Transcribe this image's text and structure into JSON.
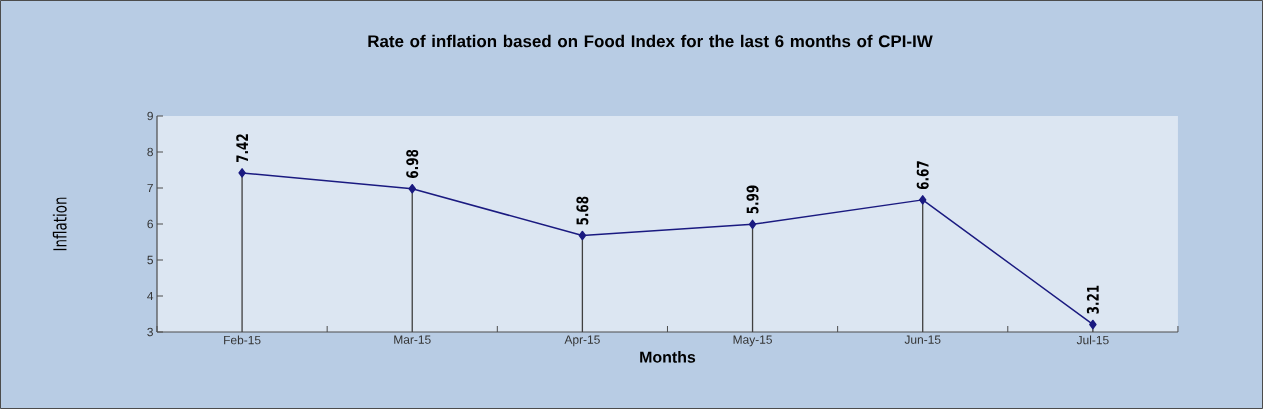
{
  "chart_data": {
    "type": "line",
    "title": "Rate of  inflation based on Food Index for the last 6 months of CPI-IW",
    "xlabel": "Months",
    "ylabel": "Inflation",
    "categories": [
      "Feb-15",
      "Mar-15",
      "Apr-15",
      "May-15",
      "Jun-15",
      "Jul-15"
    ],
    "values": [
      7.42,
      6.98,
      5.68,
      5.99,
      6.67,
      3.21
    ],
    "color": "#1a1a80",
    "ylim": [
      3,
      9
    ],
    "yticks": [
      3,
      4,
      5,
      6,
      7,
      8,
      9
    ],
    "data_labels": true,
    "marker": "diamond",
    "line_style": "solid"
  }
}
